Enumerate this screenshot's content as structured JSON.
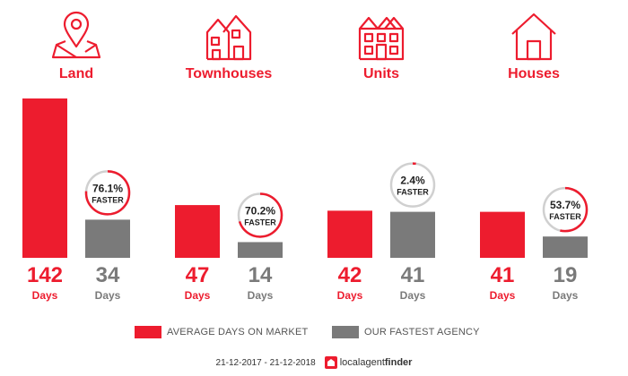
{
  "chart_data": {
    "type": "bar",
    "categories": [
      "Land",
      "Townhouses",
      "Units",
      "Houses"
    ],
    "series": [
      {
        "name": "AVERAGE DAYS ON MARKET",
        "values": [
          142,
          47,
          42,
          41
        ],
        "color": "#ed1c2e"
      },
      {
        "name": "OUR FASTEST AGENCY",
        "values": [
          34,
          14,
          41,
          19
        ],
        "color": "#7a7a7a"
      }
    ],
    "faster_percent": [
      76.1,
      70.2,
      2.4,
      53.7
    ],
    "faster_labels": [
      "76.1%",
      "70.2%",
      "2.4%",
      "53.7%"
    ],
    "faster_word": "FASTER",
    "unit_label": "Days",
    "ylim": [
      0,
      142
    ]
  },
  "icons": [
    "map-pin-icon",
    "townhouse-icon",
    "units-icon",
    "house-icon"
  ],
  "footer": {
    "date_range": "21-12-2017 - 21-12-2018",
    "brand_light": "localagent",
    "brand_bold": "finder"
  }
}
